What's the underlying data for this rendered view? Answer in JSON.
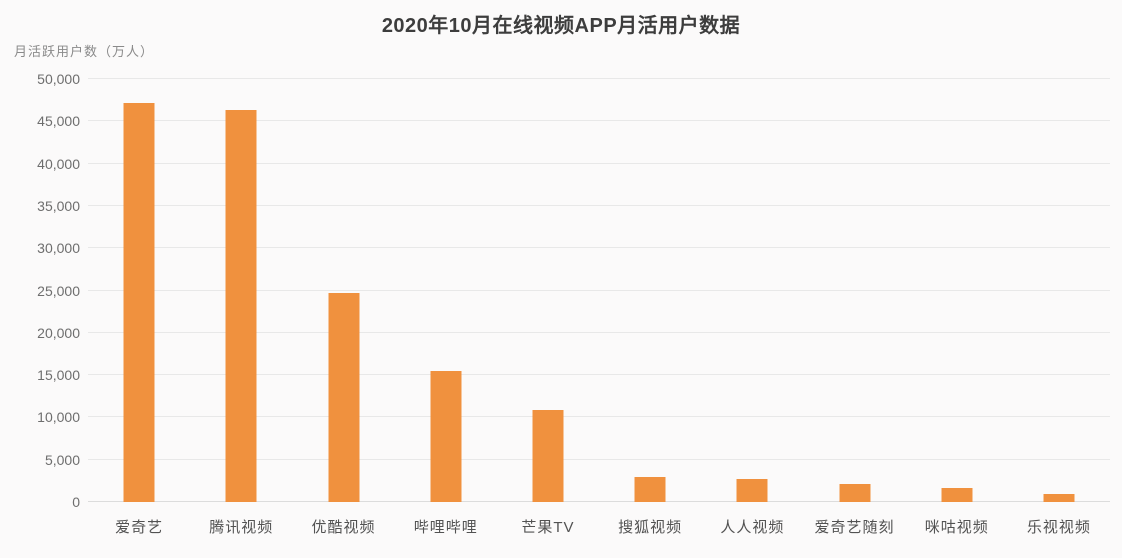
{
  "chart_data": {
    "type": "bar",
    "title": "2020年10月在线视频APP月活用户数据",
    "ylabel": "月活跃用户数（万人）",
    "xlabel": "",
    "categories": [
      "爱奇艺",
      "腾讯视频",
      "优酷视频",
      "哔哩哔哩",
      "芒果TV",
      "搜狐视频",
      "人人视频",
      "爱奇艺随刻",
      "咪咕视频",
      "乐视视频"
    ],
    "values": [
      47200,
      46300,
      24700,
      15500,
      10900,
      2900,
      2700,
      2100,
      1600,
      1000
    ],
    "ylim": [
      0,
      50000
    ],
    "ytick_step": 5000,
    "ytick_labels": [
      "0",
      "5,000",
      "10,000",
      "15,000",
      "20,000",
      "25,000",
      "30,000",
      "35,000",
      "40,000",
      "45,000",
      "50,000"
    ],
    "grid": true,
    "legend_position": "none",
    "bar_color_name": "orange"
  },
  "colors": {
    "background": "#fbfafa",
    "title": "#3d3d3d",
    "ylabel": "#8a8a8a",
    "tick": "#6e6e6e",
    "category": "#525252",
    "gridline": "#e8e8e8",
    "baseline": "#dcdcdc",
    "bar": "#F0913E"
  }
}
